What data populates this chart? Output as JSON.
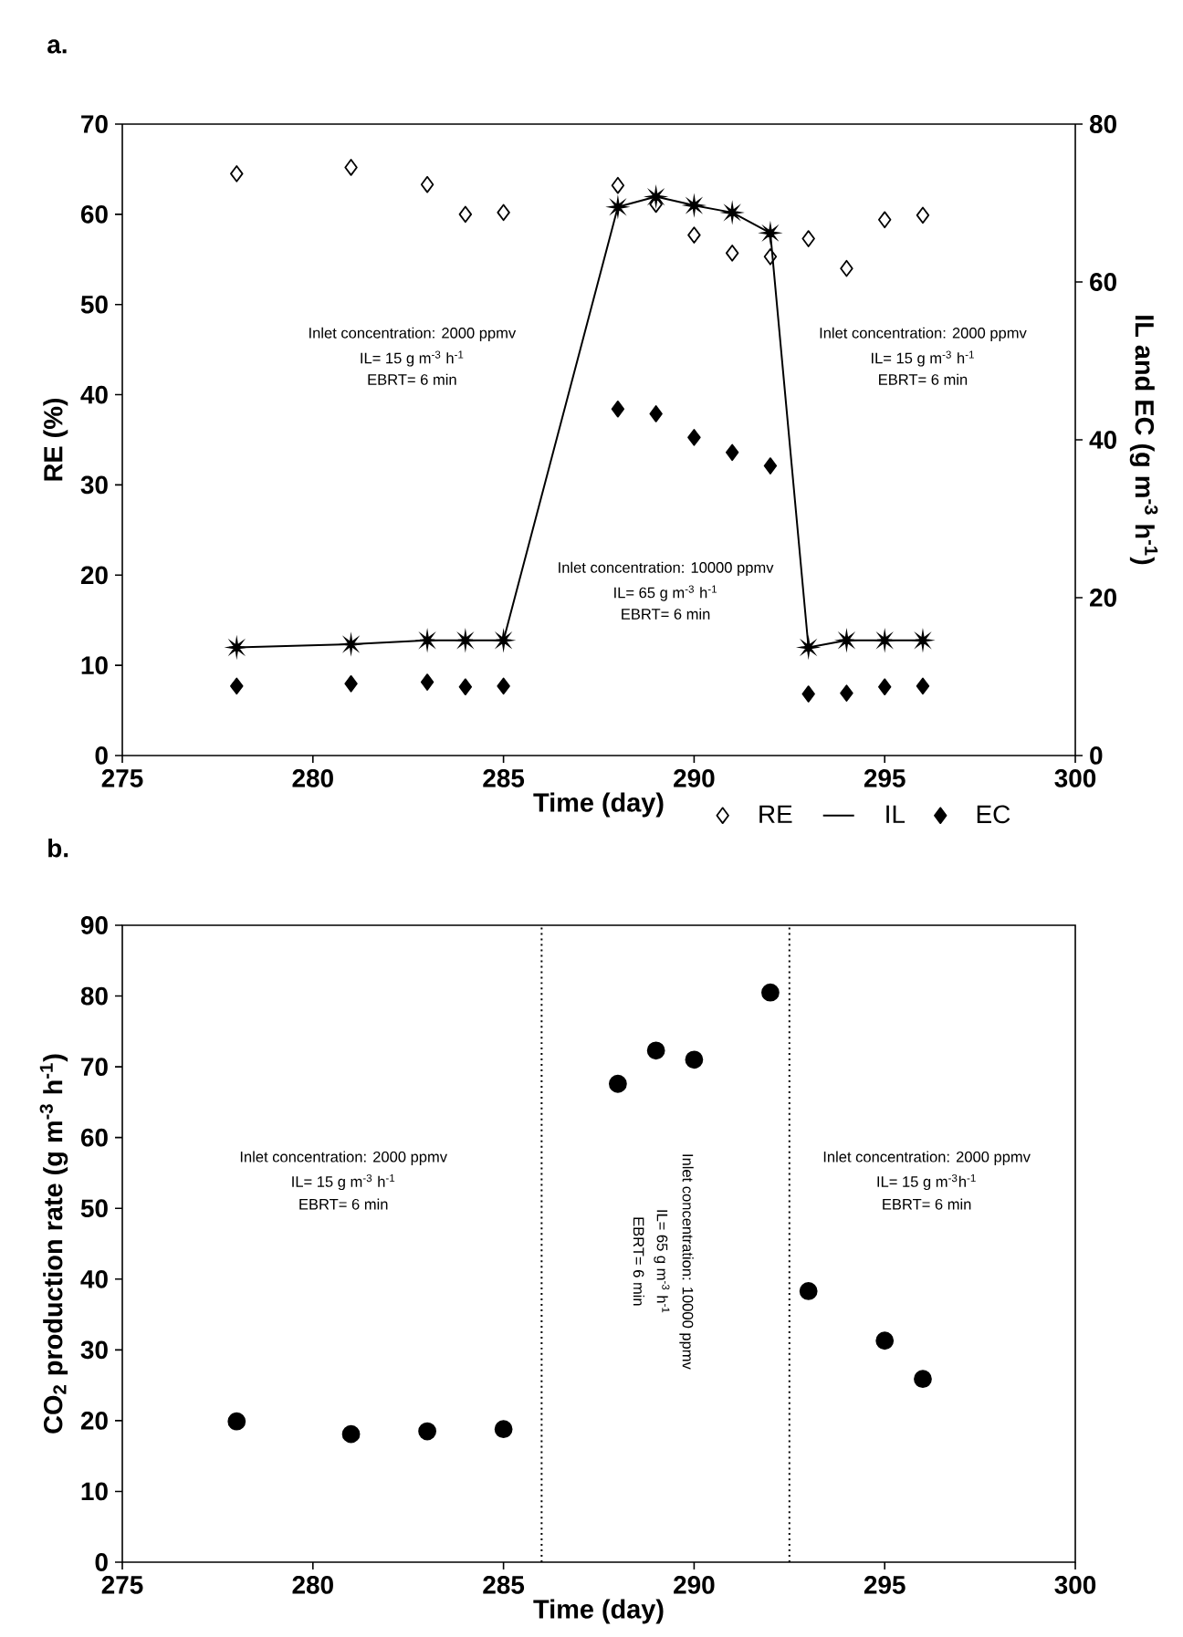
{
  "chart_data": [
    {
      "type": "scatter",
      "title": "a.",
      "xlabel": "Time (day)",
      "ylabel": "RE (%)",
      "y2label": "IL and EC (g m$^{-3}$ h$^{-1}$)",
      "x": [
        278,
        281,
        283,
        284,
        285,
        288,
        289,
        290,
        291,
        292,
        293,
        294,
        295,
        296
      ],
      "xlim": [
        275,
        300
      ],
      "xticks": [
        275,
        280,
        285,
        290,
        295,
        300
      ],
      "ylim": [
        0,
        70
      ],
      "yticks": [
        0,
        10,
        20,
        30,
        40,
        50,
        60,
        70
      ],
      "y2lim": [
        0,
        80
      ],
      "y2ticks": [
        0,
        20,
        40,
        60,
        80
      ],
      "legend": "bottom",
      "series": [
        {
          "name": "RE",
          "type": "scatter",
          "marker": "diamond",
          "color": "#000000",
          "values": [
            64.5,
            65.2,
            63.3,
            60.0,
            60.2,
            63.2,
            61.1,
            57.7,
            55.7,
            55.3,
            57.3,
            54.0,
            59.4,
            59.9
          ]
        },
        {
          "name": "IL",
          "type": "line",
          "marker": "star",
          "axis": "y2",
          "color": "#000000",
          "values": [
            13.7,
            14.1,
            14.6,
            14.6,
            14.6,
            69.5,
            70.8,
            69.7,
            68.8,
            66.2,
            13.7,
            14.6,
            14.6,
            14.6
          ]
        },
        {
          "name": "EC",
          "type": "scatter",
          "marker": "diamond",
          "axis": "y2",
          "color": "#000000",
          "values": [
            8.8,
            9.1,
            9.3,
            8.7,
            8.8,
            43.9,
            43.3,
            40.3,
            38.4,
            36.7,
            7.8,
            7.9,
            8.7,
            8.8
          ]
        }
      ],
      "annotations": [
        "Inlet concentration: 2000 ppmv",
        "IL= 15 g m$^{-3}$ h$^{-1}$",
        "EBRT= 6 min",
        "Inlet concentration: 2000 ppmv",
        "IL= 15 g m$^{-3}$ h$^{-1}$",
        "EBRT= 6 min",
        "Inlet concentration: 10000 ppmv",
        "IL= 65 g m$^{-3}$ h$^{-1}$",
        "EBRT= 6 min"
      ]
    },
    {
      "type": "scatter",
      "title": "b.",
      "xlabel": "Time (day)",
      "ylabel": "CO$_{2}$ production rate (g m$^{-3}$ h$^{-1}$)",
      "x": [
        278,
        281,
        283,
        285,
        288,
        289,
        290,
        292,
        293,
        295,
        296
      ],
      "values": [
        19.9,
        18.1,
        18.5,
        18.8,
        67.6,
        72.3,
        71.0,
        80.5,
        38.3,
        31.3,
        25.9
      ],
      "color": "#000000",
      "marker": "circle",
      "xlim": [
        275,
        300
      ],
      "xticks": [
        275,
        280,
        285,
        290,
        295,
        300
      ],
      "ylim": [
        0,
        90
      ],
      "yticks": [
        0,
        10,
        20,
        30,
        40,
        50,
        60,
        70,
        80,
        90
      ],
      "ref_lines": [
        {
          "axis": "x",
          "value": 286,
          "line_style": "dotted"
        },
        {
          "axis": "x",
          "value": 292.5,
          "line_style": "dotted"
        }
      ],
      "annotations": [
        "Inlet concentration: 2000 ppmv",
        "IL= 15 g m$^{-3}$ h$^{-1}$",
        "EBRT= 6 min",
        "Inlet concentration: 10000 ppmv",
        "IL= 65 g m$^{-3}$ h$^{-1}$",
        "EBRT= 6 min",
        "Inlet concentration: 2000 ppmv",
        "IL= 15 g m$^{-3}$h$^{-1}$",
        "EBRT= 6 min"
      ]
    }
  ]
}
